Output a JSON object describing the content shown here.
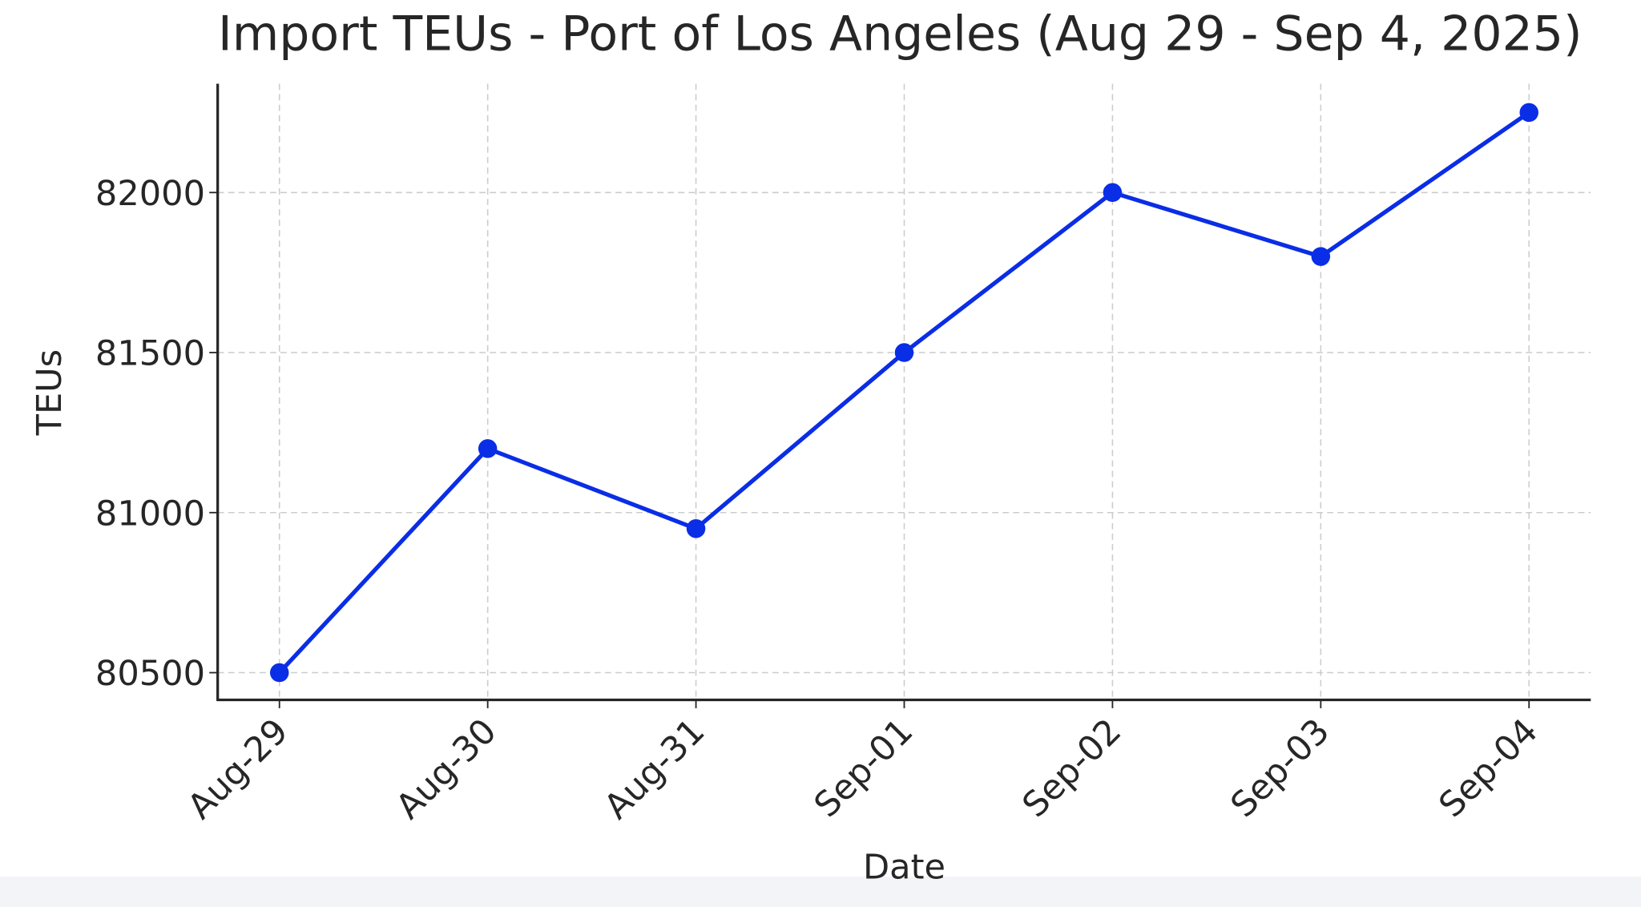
{
  "chart_data": {
    "type": "line",
    "title": "Import TEUs - Port of Los Angeles (Aug 29 - Sep 4, 2025)",
    "x_label": "Date",
    "y_label": "TEUs",
    "categories": [
      "Aug-29",
      "Aug-30",
      "Aug-31",
      "Sep-01",
      "Sep-02",
      "Sep-03",
      "Sep-04"
    ],
    "series": [
      {
        "name": "Import TEUs",
        "color": "#0a2de6",
        "values": [
          80500,
          81200,
          80950,
          81500,
          82000,
          81800,
          82250
        ]
      }
    ],
    "ylim": [
      80415,
      82340
    ],
    "yticks": [
      80500,
      81000,
      81500,
      82000
    ],
    "grid": true
  }
}
